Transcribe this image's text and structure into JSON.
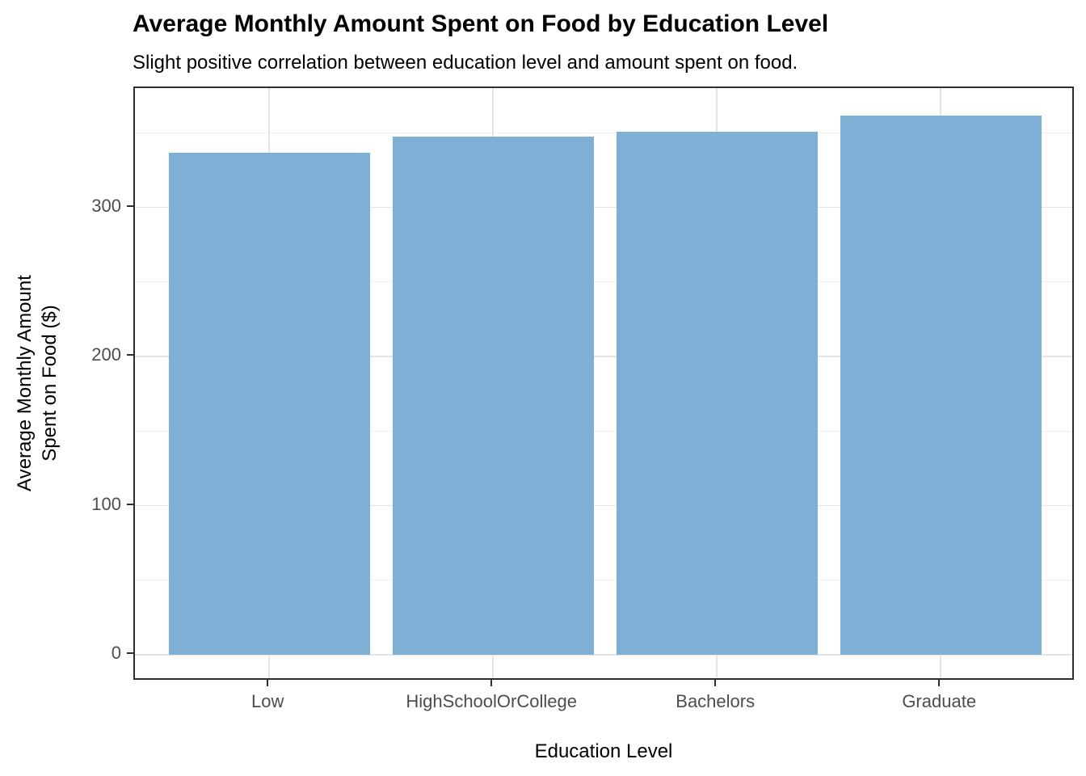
{
  "chart_data": {
    "type": "bar",
    "title": "Average Monthly Amount Spent on Food by Education Level",
    "subtitle": "Slight positive correlation between education level and amount spent on food.",
    "xlabel": "Education Level",
    "ylabel": "Average Monthly Amount Spent on Food ($)",
    "ylabel_lines": [
      "Average Monthly Amount",
      "Spent on Food ($)"
    ],
    "categories": [
      "Low",
      "HighSchoolOrCollege",
      "Bachelors",
      "Graduate"
    ],
    "values": [
      336.5,
      347.6,
      351.0,
      361.4
    ],
    "yticks": [
      0,
      100,
      200,
      300
    ],
    "minor_gridlines": [
      50,
      150,
      250,
      350
    ],
    "ylim": [
      -18,
      380
    ],
    "grid": true,
    "legend_position": "none",
    "style": {
      "bar_fill": "#7db0d4",
      "major_grid_color": "#e4e4e4",
      "minor_grid_color": "#f0f0f0",
      "panel_border_color": "#2e2e2e",
      "tick_color": "#2e2e2e",
      "tick_label_color": "#4d4d4d",
      "text_color": "#000000",
      "background": "#ffffff"
    }
  }
}
